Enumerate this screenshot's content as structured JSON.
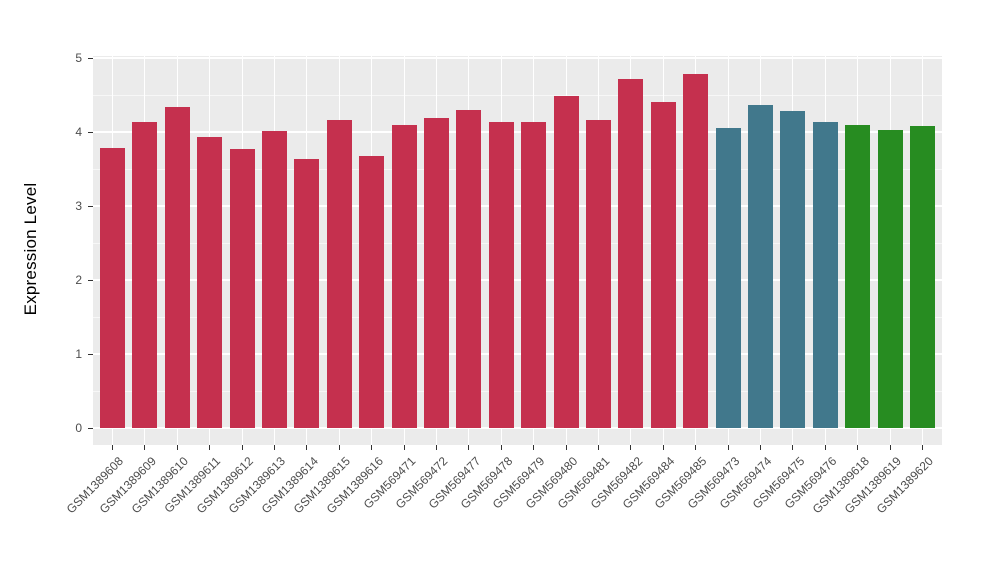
{
  "chart_data": {
    "type": "bar",
    "title": "",
    "xlabel": "",
    "ylabel": "Expression Level",
    "ylim": [
      0,
      5
    ],
    "yticks": [
      0,
      1,
      2,
      3,
      4,
      5
    ],
    "grid": true,
    "legend_position": "none",
    "panel_background": "#EBEBEB",
    "gridline_color": "#FFFFFF",
    "tick_color": "#333333",
    "axis_text_color": "#4D4D4D",
    "group_colors": {
      "red": "#C5304E",
      "teal": "#41788C",
      "green": "#278C21"
    },
    "categories": [
      "GSM1389608",
      "GSM1389609",
      "GSM1389610",
      "GSM1389611",
      "GSM1389612",
      "GSM1389613",
      "GSM1389614",
      "GSM1389615",
      "GSM1389616",
      "GSM569471",
      "GSM569472",
      "GSM569477",
      "GSM569478",
      "GSM569479",
      "GSM569480",
      "GSM569481",
      "GSM569482",
      "GSM569484",
      "GSM569485",
      "GSM569473",
      "GSM569474",
      "GSM569475",
      "GSM569476",
      "GSM1389618",
      "GSM1389619",
      "GSM1389620"
    ],
    "values": [
      3.78,
      4.13,
      4.34,
      3.93,
      3.77,
      4.01,
      3.64,
      4.16,
      3.68,
      4.09,
      4.19,
      4.3,
      4.14,
      4.14,
      4.49,
      4.16,
      4.71,
      4.4,
      4.78,
      4.05,
      4.36,
      4.28,
      4.14,
      4.1,
      4.03,
      4.08
    ],
    "groups": [
      "red",
      "red",
      "red",
      "red",
      "red",
      "red",
      "red",
      "red",
      "red",
      "red",
      "red",
      "red",
      "red",
      "red",
      "red",
      "red",
      "red",
      "red",
      "red",
      "teal",
      "teal",
      "teal",
      "teal",
      "green",
      "green",
      "green"
    ]
  }
}
